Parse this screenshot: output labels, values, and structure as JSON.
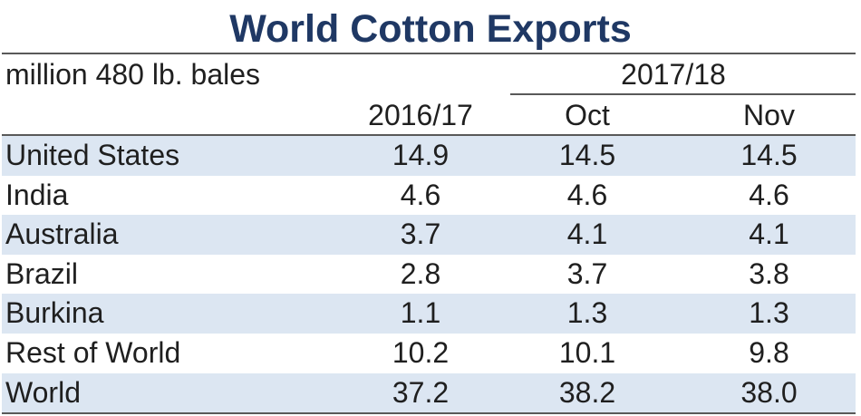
{
  "chart_data": {
    "type": "table",
    "title": "World Cotton Exports",
    "unit_label": "million 480 lb. bales",
    "group_header": "2017/18",
    "columns": [
      "2016/17",
      "Oct",
      "Nov"
    ],
    "rows": [
      {
        "label": "United States",
        "values": [
          "14.9",
          "14.5",
          "14.5"
        ]
      },
      {
        "label": "India",
        "values": [
          "4.6",
          "4.6",
          "4.6"
        ]
      },
      {
        "label": "Australia",
        "values": [
          "3.7",
          "4.1",
          "4.1"
        ]
      },
      {
        "label": "Brazil",
        "values": [
          "2.8",
          "3.7",
          "3.8"
        ]
      },
      {
        "label": "Burkina",
        "values": [
          "1.1",
          "1.3",
          "1.3"
        ]
      },
      {
        "label": "Rest of World",
        "values": [
          "10.2",
          "10.1",
          "9.8"
        ]
      },
      {
        "label": "World",
        "values": [
          "37.2",
          "38.2",
          "38.0"
        ]
      }
    ],
    "colors": {
      "title": "#1f3864",
      "row_shade": "#dce6f2",
      "rule": "#595959"
    }
  }
}
